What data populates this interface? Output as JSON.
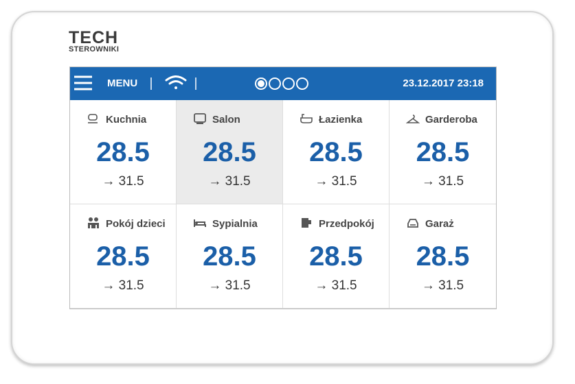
{
  "brand": {
    "name": "TECH",
    "subtitle": "STEROWNIKI"
  },
  "topbar": {
    "menu": "MENU",
    "datetime": "23.12.2017 23:18"
  },
  "rooms": [
    {
      "name": "Kuchnia",
      "temp": "28.5",
      "target": "→ 31.5"
    },
    {
      "name": "Salon",
      "temp": "28.5",
      "target": "→ 31.5"
    },
    {
      "name": "Łazienka",
      "temp": "28.5",
      "target": "→ 31.5"
    },
    {
      "name": "Garderoba",
      "temp": "28.5",
      "target": "→ 31.5"
    },
    {
      "name": "Pokój dzieci",
      "temp": "28.5",
      "target": "→ 31.5"
    },
    {
      "name": "Sypialnia",
      "temp": "28.5",
      "target": "→ 31.5"
    },
    {
      "name": "Przedpokój",
      "temp": "28.5",
      "target": "→ 31.5"
    },
    {
      "name": "Garaż",
      "temp": "28.5",
      "target": "→ 31.5"
    }
  ]
}
